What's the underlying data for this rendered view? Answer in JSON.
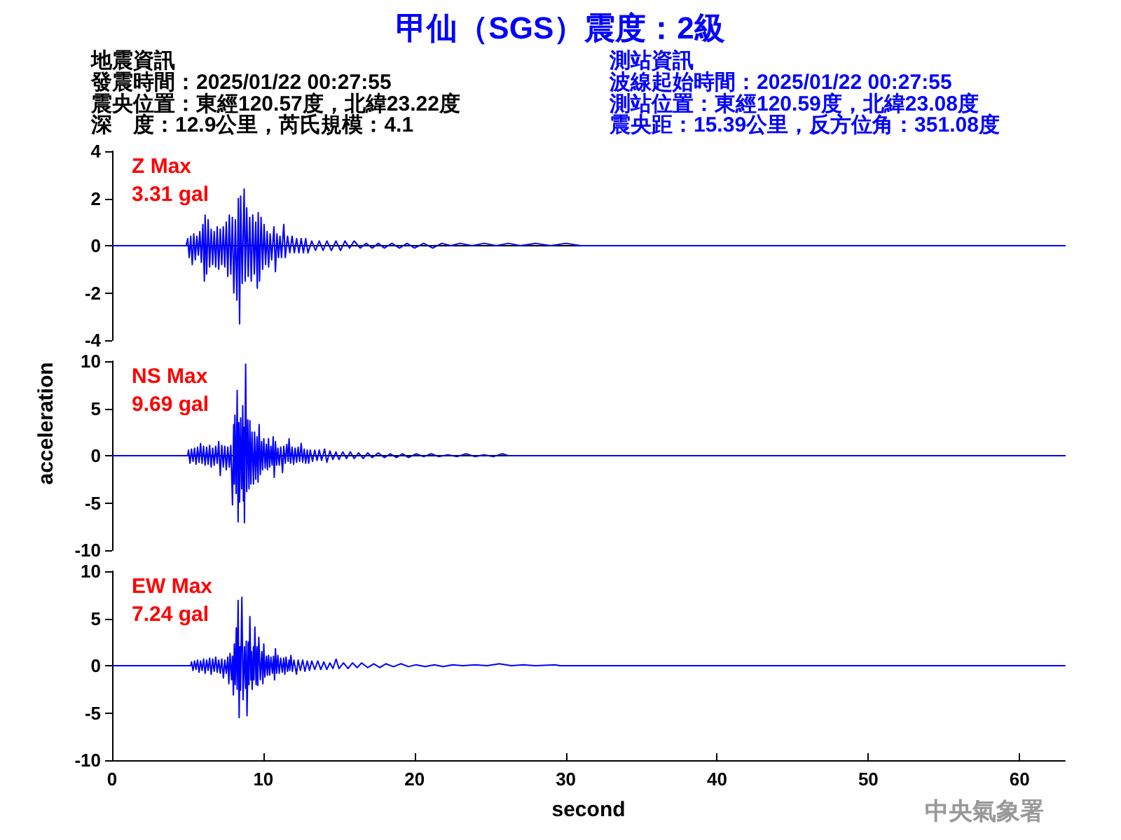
{
  "chart_data": [
    {
      "type": "line",
      "title": "甲仙（SGS）震度：2級",
      "annotations": [
        "地震資訊",
        "發震時間：2025/01/22 00:27:55",
        "震央位置：東經120.57度，北緯23.22度",
        "深　度：12.9公里，芮氏規模：4.1",
        "測站資訊",
        "波線起始時間：2025/01/22 00:27:55",
        "測站位置：東經120.59度，北緯23.08度",
        "震央距：15.39公里，反方位角：351.08度",
        "Z Max\n3.31 gal"
      ],
      "x": [
        0,
        4.9,
        5.0,
        5.1,
        5.2,
        5.3,
        5.4,
        5.5,
        5.6,
        5.7,
        5.8,
        5.9,
        6.0,
        6.1,
        6.15,
        6.25,
        6.35,
        6.45,
        6.55,
        6.65,
        6.75,
        6.85,
        6.95,
        7.05,
        7.15,
        7.25,
        7.35,
        7.45,
        7.55,
        7.65,
        7.75,
        7.85,
        7.95,
        8.05,
        8.15,
        8.25,
        8.35,
        8.43,
        8.5,
        8.6,
        8.73,
        8.8,
        8.9,
        9.0,
        9.1,
        9.2,
        9.3,
        9.4,
        9.5,
        9.6,
        9.66,
        9.75,
        9.85,
        9.95,
        10.05,
        10.15,
        10.25,
        10.35,
        10.45,
        10.55,
        10.7,
        10.8,
        10.9,
        11.0,
        11.1,
        11.2,
        11.35,
        11.45,
        11.6,
        11.75,
        11.9,
        12.05,
        12.2,
        12.35,
        12.5,
        12.65,
        12.8,
        12.95,
        13.2,
        13.45,
        13.7,
        13.95,
        14.2,
        14.5,
        14.8,
        15.1,
        15.4,
        15.7,
        16.0,
        16.4,
        16.8,
        17.2,
        17.6,
        18.0,
        18.5,
        19.0,
        19.5,
        20.0,
        20.6,
        21.2,
        21.8,
        22.4,
        23.0,
        23.8,
        24.6,
        25.4,
        26.2,
        27.0,
        28.0,
        29.0,
        30.0,
        31.0,
        63
      ],
      "values": [
        0,
        0,
        0.3,
        -0.5,
        0.4,
        -0.8,
        0.5,
        -0.6,
        0.4,
        -0.4,
        0.6,
        -0.7,
        0.9,
        -1.5,
        1.3,
        -1.2,
        1.1,
        -0.9,
        0.7,
        -0.8,
        0.6,
        -0.9,
        0.8,
        -1.0,
        0.7,
        -0.8,
        0.8,
        -0.9,
        1.0,
        -1.3,
        1.3,
        -1.2,
        1.2,
        -2.0,
        1.1,
        -2.3,
        2.0,
        -3.31,
        2.1,
        -1.6,
        2.4,
        -1.5,
        1.6,
        -1.3,
        1.2,
        -1.5,
        1.3,
        -1.2,
        1.0,
        -1.8,
        1.4,
        -1.5,
        1.2,
        -1.0,
        0.9,
        -0.8,
        0.6,
        -0.9,
        0.5,
        -0.6,
        0.8,
        -1.1,
        0.5,
        -0.5,
        0.4,
        -0.5,
        0.9,
        -0.5,
        0.4,
        -0.3,
        0.4,
        -0.3,
        0.3,
        -0.3,
        0.3,
        -0.3,
        0.3,
        -0.3,
        0.2,
        -0.2,
        0.2,
        -0.2,
        0.2,
        -0.2,
        0.2,
        -0.2,
        0.2,
        -0.1,
        0.2,
        -0.1,
        0.1,
        -0.1,
        0.1,
        -0.1,
        0.1,
        -0.1,
        0.1,
        -0.1,
        0.1,
        -0.1,
        0.1,
        0,
        0.1,
        0,
        0.1,
        0,
        0.1,
        0,
        0.1,
        0,
        0.1,
        0,
        0
      ],
      "color": "#0000ff",
      "xlim": [
        0,
        63
      ],
      "ylim": [
        -4,
        4
      ],
      "yticks": [
        -4,
        -2,
        0,
        2,
        4
      ],
      "tick_labels": "y"
    },
    {
      "type": "line",
      "ylabel": "acceleration",
      "annotations": [
        "NS Max\n9.69 gal"
      ],
      "x": [
        0,
        5.0,
        5.05,
        5.15,
        5.25,
        5.35,
        5.45,
        5.55,
        5.65,
        5.75,
        5.85,
        5.95,
        6.05,
        6.15,
        6.25,
        6.35,
        6.45,
        6.55,
        6.65,
        6.75,
        6.85,
        6.95,
        7.05,
        7.15,
        7.25,
        7.35,
        7.45,
        7.55,
        7.65,
        7.75,
        7.85,
        7.96,
        8.04,
        8.08,
        8.12,
        8.2,
        8.27,
        8.33,
        8.38,
        8.43,
        8.5,
        8.57,
        8.64,
        8.68,
        8.71,
        8.75,
        8.83,
        8.9,
        8.97,
        9.05,
        9.11,
        9.18,
        9.25,
        9.35,
        9.42,
        9.5,
        9.58,
        9.65,
        9.72,
        9.8,
        9.88,
        9.95,
        10.03,
        10.12,
        10.2,
        10.27,
        10.34,
        10.42,
        10.5,
        10.58,
        10.65,
        10.72,
        10.8,
        10.88,
        10.96,
        11.05,
        11.15,
        11.27,
        11.35,
        11.45,
        11.55,
        11.64,
        11.7,
        11.8,
        11.9,
        12.0,
        12.1,
        12.2,
        12.3,
        12.4,
        12.5,
        12.6,
        12.7,
        12.8,
        12.9,
        13.0,
        13.1,
        13.25,
        13.4,
        13.55,
        13.7,
        13.85,
        14.05,
        14.2,
        14.4,
        14.6,
        14.8,
        15.0,
        15.25,
        15.5,
        15.75,
        16.0,
        16.3,
        16.6,
        16.9,
        17.2,
        17.6,
        18.0,
        18.4,
        18.8,
        19.2,
        19.6,
        20.1,
        20.6,
        21.1,
        21.6,
        22.2,
        22.8,
        23.4,
        24.0,
        24.6,
        25.2,
        25.8,
        26.2,
        63
      ],
      "values": [
        0,
        0,
        0.6,
        -0.8,
        0.7,
        -0.6,
        0.8,
        -0.9,
        0.9,
        -0.7,
        1.3,
        -0.8,
        1.0,
        -1.0,
        0.9,
        -0.9,
        1.1,
        -1.2,
        0.8,
        -1.0,
        1.0,
        -0.8,
        1.5,
        -2.1,
        1.1,
        -1.2,
        1.0,
        -1.5,
        0.9,
        -1.2,
        1.1,
        -5.2,
        3.3,
        -3.0,
        4.3,
        -4.0,
        6.9,
        -7.0,
        3.5,
        -4.9,
        4.0,
        -3.5,
        5.3,
        -4.8,
        3.0,
        -7.1,
        9.69,
        -3.8,
        3.8,
        -3.5,
        3.7,
        -3.0,
        2.5,
        -3.0,
        2.5,
        -2.5,
        2.0,
        -2.8,
        3.3,
        -2.0,
        1.5,
        -1.5,
        1.8,
        -1.3,
        1.2,
        -1.5,
        1.8,
        -1.2,
        1.0,
        -1.0,
        2.0,
        -2.3,
        1.5,
        -1.0,
        0.8,
        -1.0,
        0.9,
        -1.8,
        1.0,
        -0.8,
        1.2,
        -0.6,
        1.8,
        -0.8,
        0.9,
        -0.9,
        0.8,
        -0.7,
        0.9,
        -0.6,
        1.3,
        -0.7,
        0.7,
        -0.8,
        0.6,
        -0.8,
        0.6,
        -0.6,
        0.6,
        -0.5,
        0.6,
        -0.5,
        0.7,
        -0.7,
        0.5,
        -0.4,
        0.4,
        -0.4,
        0.4,
        -0.3,
        0.4,
        -0.3,
        0.3,
        -0.3,
        0.3,
        -0.2,
        0.3,
        -0.2,
        0.2,
        -0.2,
        0.2,
        -0.2,
        0.2,
        -0.1,
        0.2,
        -0.1,
        0.1,
        -0.1,
        0.2,
        -0.1,
        0.1,
        -0.1,
        0.2,
        0,
        0
      ],
      "color": "#0000ff",
      "xlim": [
        0,
        63
      ],
      "ylim": [
        -10,
        10
      ],
      "yticks": [
        -10,
        -5,
        0,
        5,
        10
      ],
      "tick_labels": "y"
    },
    {
      "type": "line",
      "xlabel": "second",
      "annotations": [
        "EW Max\n7.24 gal",
        "中央氣象署"
      ],
      "x": [
        0,
        5.2,
        5.25,
        5.35,
        5.45,
        5.55,
        5.65,
        5.75,
        5.85,
        5.95,
        6.05,
        6.15,
        6.25,
        6.35,
        6.45,
        6.55,
        6.65,
        6.75,
        6.85,
        6.95,
        7.05,
        7.15,
        7.25,
        7.36,
        7.45,
        7.55,
        7.65,
        7.72,
        7.8,
        7.9,
        7.96,
        8.02,
        8.08,
        8.14,
        8.21,
        8.27,
        8.33,
        8.4,
        8.45,
        8.49,
        8.58,
        8.66,
        8.75,
        8.83,
        8.87,
        8.92,
        9.0,
        9.05,
        9.11,
        9.18,
        9.22,
        9.26,
        9.35,
        9.38,
        9.44,
        9.52,
        9.58,
        9.63,
        9.7,
        9.8,
        9.9,
        9.97,
        10.03,
        10.1,
        10.2,
        10.27,
        10.34,
        10.42,
        10.5,
        10.6,
        10.67,
        10.74,
        10.8,
        10.88,
        10.96,
        11.05,
        11.15,
        11.25,
        11.35,
        11.42,
        11.5,
        11.6,
        11.7,
        11.75,
        11.82,
        11.92,
        12.02,
        12.19,
        12.3,
        12.45,
        12.6,
        12.75,
        12.9,
        13.05,
        13.2,
        13.4,
        13.6,
        13.8,
        14.0,
        14.2,
        14.4,
        14.6,
        14.81,
        15.0,
        15.3,
        15.6,
        15.9,
        16.2,
        16.5,
        16.9,
        17.3,
        17.7,
        18.1,
        18.6,
        19.1,
        19.6,
        20.1,
        20.7,
        21.3,
        21.9,
        22.5,
        23.2,
        24.0,
        24.8,
        25.6,
        26.4,
        27.2,
        28.0,
        29.3,
        29.6,
        63
      ],
      "values": [
        0,
        0,
        0.4,
        -0.5,
        0.5,
        -0.4,
        0.6,
        -0.7,
        0.5,
        -0.5,
        0.7,
        -0.8,
        0.6,
        -0.5,
        0.8,
        -0.9,
        0.7,
        -0.6,
        0.9,
        -0.7,
        0.6,
        -0.8,
        0.7,
        -1.3,
        0.6,
        -0.8,
        0.9,
        -1.9,
        1.3,
        -1.5,
        1.0,
        -3.1,
        2.3,
        -2.0,
        4.0,
        -2.5,
        6.9,
        -5.5,
        2.0,
        -2.6,
        7.24,
        -3.6,
        2.0,
        -2.4,
        2.6,
        -5.3,
        2.5,
        -2.0,
        5.2,
        -1.5,
        1.5,
        -2.5,
        2.0,
        -1.5,
        4.1,
        -2.0,
        2.0,
        -2.1,
        3.0,
        -1.5,
        1.5,
        -1.9,
        2.3,
        -1.2,
        1.0,
        -1.0,
        1.1,
        -1.0,
        0.9,
        -0.8,
        1.0,
        -1.5,
        1.8,
        -0.8,
        1.1,
        -0.8,
        0.8,
        -0.7,
        0.8,
        -0.9,
        0.9,
        -0.6,
        0.6,
        -0.5,
        1.1,
        -0.6,
        0.6,
        -0.9,
        0.6,
        -0.5,
        0.6,
        -0.6,
        0.5,
        -0.5,
        0.5,
        -0.4,
        0.5,
        -0.4,
        0.4,
        -0.4,
        0.3,
        -0.3,
        0.7,
        -0.3,
        0.3,
        -0.3,
        0.3,
        -0.2,
        0.3,
        -0.2,
        0.2,
        -0.2,
        0.2,
        -0.1,
        0.2,
        -0.1,
        0.1,
        -0.1,
        0.1,
        -0.1,
        0.1,
        0,
        0.1,
        0,
        0.2,
        0,
        0.1,
        0,
        0.1,
        0,
        0
      ],
      "color": "#0000ff",
      "xlim": [
        0,
        63
      ],
      "xticks": [
        0,
        10,
        20,
        30,
        40,
        50,
        60
      ],
      "ylim": [
        -10,
        10
      ],
      "yticks": [
        -10,
        -5,
        0,
        5,
        10
      ]
    }
  ]
}
